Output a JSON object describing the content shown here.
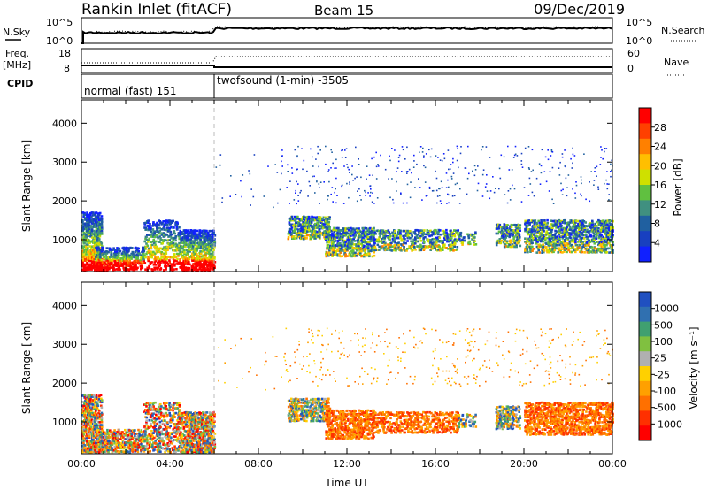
{
  "header": {
    "title": "Rankin Inlet (fitACF)",
    "beam": "Beam 15",
    "date": "09/Dec/2019"
  },
  "top_panels": {
    "nsky_label": "N.Sky",
    "nsky_ticks": [
      "10^5",
      "10^0"
    ],
    "nsearch_label": "N.Search",
    "nsearch_ticks": [
      "10^5",
      "10^0"
    ],
    "freq_label": "Freq.",
    "freq_unit": "[MHz]",
    "freq_ticks": [
      "18",
      "8"
    ],
    "nave_label": "Nave",
    "nave_ticks": [
      "60",
      "0"
    ],
    "cpid_label": "CPID",
    "cpid_segments": [
      {
        "name": "normal (fast) 151",
        "start_h": 0,
        "end_h": 6
      },
      {
        "name": "twofsound (1-min) -3505",
        "start_h": 6,
        "end_h": 24
      }
    ]
  },
  "chart_data": [
    {
      "type": "heatmap",
      "name": "power",
      "ylabel": "Slant Range [km]",
      "ylim": [
        180,
        4600
      ],
      "yticks": [
        "1000",
        "2000",
        "3000",
        "4000"
      ],
      "xlim_hours": [
        0,
        24
      ],
      "colorbar_label": "Power [dB]",
      "colorbar_ticks": [
        "28",
        "24",
        "20",
        "16",
        "12",
        "8",
        "4"
      ],
      "colorbar_colors": [
        "#ff0000",
        "#ff4000",
        "#ff8000",
        "#ffbf00",
        "#cfe000",
        "#60c040",
        "#409080",
        "#2060a0",
        "#1840c0",
        "#1020ff"
      ]
    },
    {
      "type": "heatmap",
      "name": "velocity",
      "ylabel": "Slant Range [km]",
      "ylim": [
        180,
        4600
      ],
      "yticks": [
        "1000",
        "2000",
        "3000",
        "4000"
      ],
      "xlim_hours": [
        0,
        24
      ],
      "xlabel": "Time UT",
      "xticks": [
        "00:00",
        "04:00",
        "08:00",
        "12:00",
        "16:00",
        "20:00",
        "00:00"
      ],
      "colorbar_label": "Velocity [m s⁻¹]",
      "colorbar_ticks": [
        "1000",
        "500",
        "100",
        "25",
        "-25",
        "-100",
        "-500",
        "-1000"
      ],
      "colorbar_colors": [
        "#2050c0",
        "#3070b0",
        "#40a070",
        "#80c040",
        "#b0b0b0",
        "#ffd000",
        "#ffa000",
        "#ff7000",
        "#ff3000",
        "#ff0000"
      ]
    }
  ]
}
